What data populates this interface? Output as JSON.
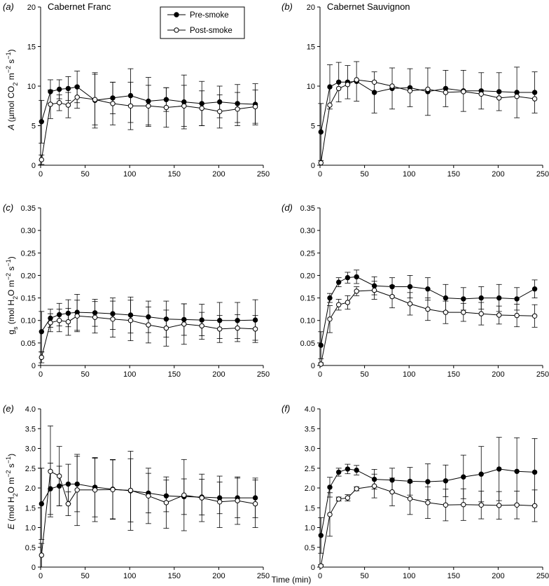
{
  "figure": {
    "xlabel": "Time (min)",
    "legend": {
      "position": "top",
      "items": [
        {
          "label": "Pre-smoke",
          "marker": "filled-circle"
        },
        {
          "label": "Post-smoke",
          "marker": "open-circle"
        }
      ]
    },
    "colors": {
      "line": "#000000",
      "background": "#ffffff"
    }
  },
  "panel_labels": [
    "(a)",
    "(b)",
    "(c)",
    "(d)",
    "(e)",
    "(f)"
  ],
  "cultivars": [
    "Cabernet Franc",
    "Cabernet Sauvignon"
  ],
  "ylabels": {
    "A": "A (µmol CO2 m−2 s−1)",
    "gs": "gs (mol H2O m−2 s−1)",
    "E": "E (mol H2O m−2 s−1)"
  },
  "chart_data": [
    {
      "type": "line",
      "panel": "(a)",
      "title": "Cabernet Franc",
      "ylabel": "A (µmol CO2 m−2 s−1)",
      "xlim": [
        0,
        250
      ],
      "ylim": [
        0,
        20
      ],
      "xticks": [
        0,
        50,
        100,
        150,
        200,
        250
      ],
      "yticks": [
        0,
        5,
        10,
        15,
        20
      ],
      "grid": false,
      "x": [
        1,
        11,
        21,
        31,
        41,
        61,
        81,
        101,
        121,
        141,
        161,
        181,
        201,
        221,
        241
      ],
      "series": [
        {
          "name": "Pre-smoke",
          "marker": "filled",
          "values": [
            5.5,
            9.3,
            9.6,
            9.7,
            9.9,
            8.2,
            8.5,
            8.8,
            8.1,
            8.3,
            8.0,
            7.8,
            8.0,
            7.8,
            7.7
          ],
          "errors": [
            2.7,
            1.5,
            1.2,
            1.5,
            2.0,
            3.5,
            2.0,
            3.4,
            3.0,
            1.5,
            3.4,
            2.8,
            2.0,
            2.4,
            2.6
          ]
        },
        {
          "name": "Post-smoke",
          "marker": "open",
          "values": [
            0.7,
            7.7,
            7.9,
            7.6,
            8.6,
            8.3,
            7.8,
            7.5,
            7.5,
            7.3,
            7.5,
            7.2,
            6.8,
            7.1,
            7.4
          ],
          "errors": [
            0.6,
            1.8,
            1.0,
            1.6,
            1.4,
            3.2,
            2.7,
            3.0,
            2.6,
            2.5,
            2.6,
            2.2,
            2.1,
            2.1,
            2.1
          ]
        }
      ]
    },
    {
      "type": "line",
      "panel": "(b)",
      "title": "Cabernet Sauvignon",
      "ylabel": "",
      "xlim": [
        0,
        250
      ],
      "ylim": [
        0,
        20
      ],
      "xticks": [
        0,
        50,
        100,
        150,
        200,
        250
      ],
      "yticks": [
        0,
        5,
        10,
        15,
        20
      ],
      "grid": false,
      "x": [
        1,
        11,
        21,
        31,
        41,
        61,
        81,
        101,
        121,
        141,
        161,
        181,
        201,
        221,
        241
      ],
      "series": [
        {
          "name": "Pre-smoke",
          "marker": "filled",
          "values": [
            4.2,
            9.9,
            10.5,
            10.5,
            10.6,
            9.2,
            9.7,
            9.8,
            9.3,
            9.7,
            9.4,
            9.4,
            9.3,
            9.2,
            9.2
          ],
          "errors": [
            3.6,
            2.8,
            2.5,
            2.1,
            2.5,
            2.6,
            2.6,
            2.4,
            3.0,
            2.3,
            2.6,
            2.3,
            2.4,
            3.2,
            2.6
          ]
        },
        {
          "name": "Post-smoke",
          "marker": "open",
          "values": [
            0.3,
            7.6,
            9.7,
            10.2,
            10.8,
            10.5,
            10.0,
            9.4,
            9.6,
            9.2,
            9.3,
            9.0,
            8.5,
            8.7,
            8.4
          ]
        }
      ]
    },
    {
      "type": "line",
      "panel": "(c)",
      "title": "",
      "ylabel": "gs (mol H2O m−2 s−1)",
      "xlim": [
        0,
        250
      ],
      "ylim": [
        0,
        0.35
      ],
      "xticks": [
        0,
        50,
        100,
        150,
        200,
        250
      ],
      "yticks": [
        0,
        0.05,
        0.1,
        0.15,
        0.2,
        0.25,
        0.3,
        0.35
      ],
      "grid": false,
      "x": [
        1,
        11,
        21,
        31,
        41,
        61,
        81,
        101,
        121,
        141,
        161,
        181,
        201,
        221,
        241
      ],
      "series": [
        {
          "name": "Pre-smoke",
          "marker": "filled",
          "values": [
            0.075,
            0.105,
            0.113,
            0.116,
            0.118,
            0.117,
            0.115,
            0.112,
            0.108,
            0.103,
            0.102,
            0.101,
            0.1,
            0.1,
            0.101
          ],
          "errors": [
            0.045,
            0.02,
            0.025,
            0.03,
            0.04,
            0.03,
            0.035,
            0.04,
            0.035,
            0.04,
            0.035,
            0.035,
            0.04,
            0.04,
            0.045
          ]
        },
        {
          "name": "Post-smoke",
          "marker": "open",
          "values": [
            0.018,
            0.095,
            0.1,
            0.097,
            0.11,
            0.107,
            0.103,
            0.1,
            0.09,
            0.083,
            0.092,
            0.088,
            0.081,
            0.083,
            0.081
          ],
          "errors": [
            0.012,
            0.02,
            0.025,
            0.03,
            0.035,
            0.035,
            0.04,
            0.045,
            0.04,
            0.04,
            0.045,
            0.03,
            0.03,
            0.03,
            0.03
          ]
        }
      ]
    },
    {
      "type": "line",
      "panel": "(d)",
      "title": "",
      "ylabel": "",
      "xlim": [
        0,
        250
      ],
      "ylim": [
        0,
        0.35
      ],
      "xticks": [
        0,
        50,
        100,
        150,
        200,
        250
      ],
      "yticks": [
        0,
        0.05,
        0.1,
        0.15,
        0.2,
        0.25,
        0.3,
        0.35
      ],
      "grid": false,
      "x": [
        1,
        11,
        21,
        31,
        41,
        61,
        81,
        101,
        121,
        141,
        161,
        181,
        201,
        221,
        241
      ],
      "series": [
        {
          "name": "Pre-smoke",
          "marker": "filled",
          "values": [
            0.045,
            0.15,
            0.185,
            0.195,
            0.197,
            0.177,
            0.175,
            0.175,
            0.17,
            0.15,
            0.148,
            0.15,
            0.15,
            0.148,
            0.17
          ],
          "errors": [
            0.03,
            0.01,
            0.01,
            0.012,
            0.015,
            0.02,
            0.02,
            0.025,
            0.025,
            0.03,
            0.025,
            0.025,
            0.03,
            0.025,
            0.02
          ]
        },
        {
          "name": "Post-smoke",
          "marker": "open",
          "values": [
            0.003,
            0.103,
            0.135,
            0.14,
            0.165,
            0.167,
            0.153,
            0.137,
            0.125,
            0.118,
            0.118,
            0.115,
            0.112,
            0.111,
            0.11
          ],
          "errors": [
            0.003,
            0.03,
            0.012,
            0.015,
            0.01,
            0.02,
            0.025,
            0.025,
            0.025,
            0.025,
            0.02,
            0.025,
            0.02,
            0.025,
            0.025
          ]
        }
      ]
    },
    {
      "type": "line",
      "panel": "(e)",
      "title": "",
      "ylabel": "E (mol H2O m−2 s−1)",
      "xlim": [
        0,
        250
      ],
      "ylim": [
        0,
        4.0
      ],
      "xticks": [
        0,
        50,
        100,
        150,
        200,
        250
      ],
      "yticks": [
        0,
        0.5,
        1.0,
        1.5,
        2.0,
        2.5,
        3.0,
        3.5,
        4.0
      ],
      "grid": false,
      "x": [
        1,
        11,
        21,
        31,
        41,
        61,
        81,
        101,
        121,
        141,
        161,
        181,
        201,
        221,
        241
      ],
      "series": [
        {
          "name": "Pre-smoke",
          "marker": "filled",
          "values": [
            1.6,
            1.98,
            2.05,
            2.1,
            2.1,
            2.02,
            1.97,
            1.93,
            1.87,
            1.8,
            1.78,
            1.77,
            1.75,
            1.75,
            1.75
          ],
          "errors": [
            0.9,
            0.65,
            0.5,
            0.5,
            0.7,
            0.75,
            0.75,
            1.0,
            0.5,
            0.4,
            0.45,
            0.45,
            0.4,
            0.5,
            0.5
          ]
        },
        {
          "name": "Post-smoke",
          "marker": "open",
          "values": [
            0.3,
            2.42,
            2.3,
            1.6,
            1.95,
            1.95,
            1.96,
            1.94,
            1.8,
            1.63,
            1.82,
            1.75,
            1.65,
            1.68,
            1.6
          ],
          "errors": [
            0.3,
            1.15,
            0.75,
            0.3,
            0.9,
            0.8,
            0.75,
            0.8,
            0.7,
            0.65,
            0.9,
            0.6,
            0.65,
            0.6,
            0.6
          ]
        }
      ]
    },
    {
      "type": "line",
      "panel": "(f)",
      "title": "",
      "ylabel": "",
      "xlim": [
        0,
        250
      ],
      "ylim": [
        0,
        4.0
      ],
      "xticks": [
        0,
        50,
        100,
        150,
        200,
        250
      ],
      "yticks": [
        0,
        0.5,
        1.0,
        1.5,
        2.0,
        2.5,
        3.0,
        3.5,
        4.0
      ],
      "grid": false,
      "x": [
        1,
        11,
        21,
        31,
        41,
        61,
        81,
        101,
        121,
        141,
        161,
        181,
        201,
        221,
        241
      ],
      "series": [
        {
          "name": "Pre-smoke",
          "marker": "filled",
          "values": [
            0.8,
            2.02,
            2.4,
            2.48,
            2.45,
            2.22,
            2.2,
            2.17,
            2.16,
            2.18,
            2.28,
            2.35,
            2.48,
            2.42,
            2.4
          ],
          "errors": [
            0.45,
            0.25,
            0.1,
            0.12,
            0.12,
            0.25,
            0.3,
            0.35,
            0.45,
            0.4,
            0.55,
            0.7,
            0.8,
            0.85,
            0.85
          ]
        },
        {
          "name": "Post-smoke",
          "marker": "open",
          "values": [
            0.03,
            1.33,
            1.72,
            1.75,
            1.98,
            2.05,
            1.9,
            1.73,
            1.63,
            1.57,
            1.58,
            1.57,
            1.56,
            1.57,
            1.55
          ],
          "errors": [
            0.03,
            0.55,
            0.05,
            0.08,
            0.05,
            0.3,
            0.35,
            0.4,
            0.4,
            0.4,
            0.4,
            0.35,
            0.35,
            0.35,
            0.4
          ]
        }
      ]
    }
  ]
}
